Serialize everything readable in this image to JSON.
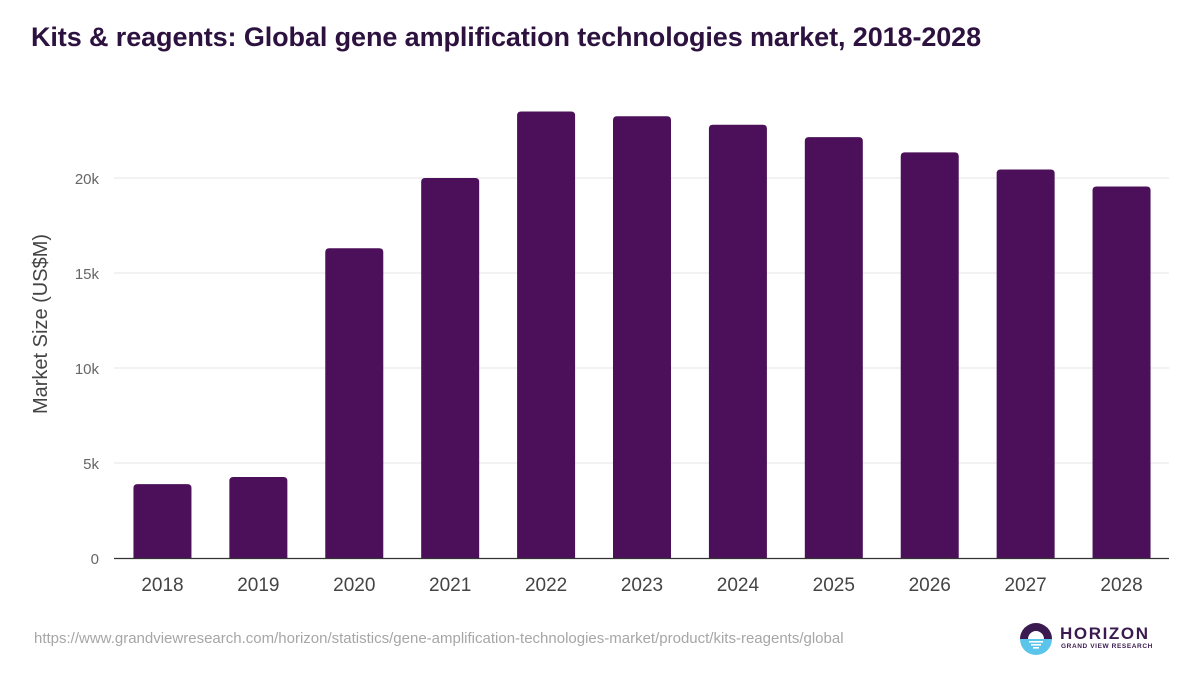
{
  "title": "Kits & reagents: Global gene amplification technologies market, 2018-2028",
  "source_url": "https://www.grandviewresearch.com/horizon/statistics/gene-amplification-technologies-market/product/kits-reagents/global",
  "logo": {
    "name": "HORIZON",
    "subtitle": "GRAND VIEW RESEARCH",
    "icon": "horizon-sun-logo-icon"
  },
  "colors": {
    "bar": "#4b1059",
    "title": "#2d1240",
    "grid": "#e6e6e6",
    "axis": "#333333",
    "tick_text": "#666666",
    "logo_dark": "#3a1a4f",
    "logo_light": "#5bc4ea"
  },
  "chart_data": {
    "type": "bar",
    "title": "Kits & reagents: Global gene amplification technologies market, 2018-2028",
    "xlabel": "",
    "ylabel": "Market Size (US$M)",
    "categories": [
      "2018",
      "2019",
      "2020",
      "2021",
      "2022",
      "2023",
      "2024",
      "2025",
      "2026",
      "2027",
      "2028"
    ],
    "values": [
      3890,
      4260,
      16300,
      20000,
      23500,
      23250,
      22800,
      22150,
      21350,
      20450,
      19550
    ],
    "ylim": [
      0,
      25000
    ],
    "yticks": [
      0,
      5000,
      10000,
      15000,
      20000
    ],
    "ytick_labels": [
      "0",
      "5k",
      "10k",
      "15k",
      "20k"
    ],
    "grid": true,
    "legend": "none"
  }
}
